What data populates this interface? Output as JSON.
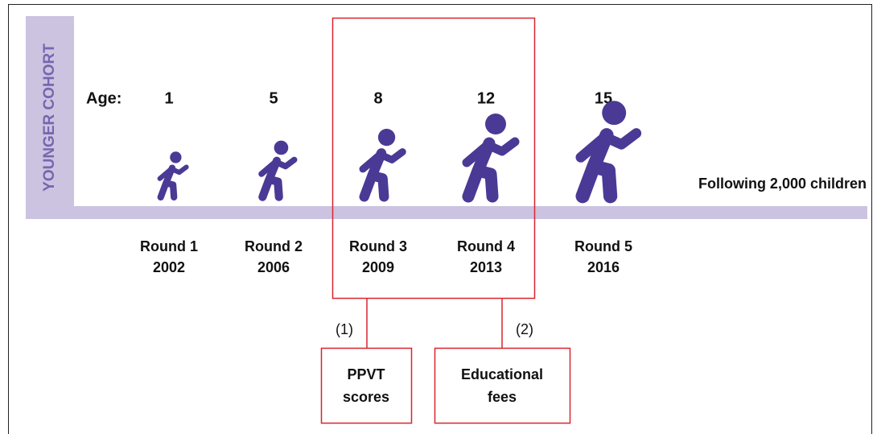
{
  "cohort_label": "YOUNGER COHORT",
  "age_label": "Age:",
  "rounds": [
    {
      "age": "1",
      "round": "Round 1",
      "year": "2002"
    },
    {
      "age": "5",
      "round": "Round 2",
      "year": "2006"
    },
    {
      "age": "8",
      "round": "Round 3",
      "year": "2009"
    },
    {
      "age": "12",
      "round": "Round 4",
      "year": "2013"
    },
    {
      "age": "15",
      "round": "Round 5",
      "year": "2016"
    }
  ],
  "sample_note": "Following 2,000 children",
  "callouts": [
    {
      "marker": "(1)",
      "lines": [
        "PPVT",
        "scores"
      ]
    },
    {
      "marker": "(2)",
      "lines": [
        "Educational",
        "fees"
      ]
    }
  ]
}
